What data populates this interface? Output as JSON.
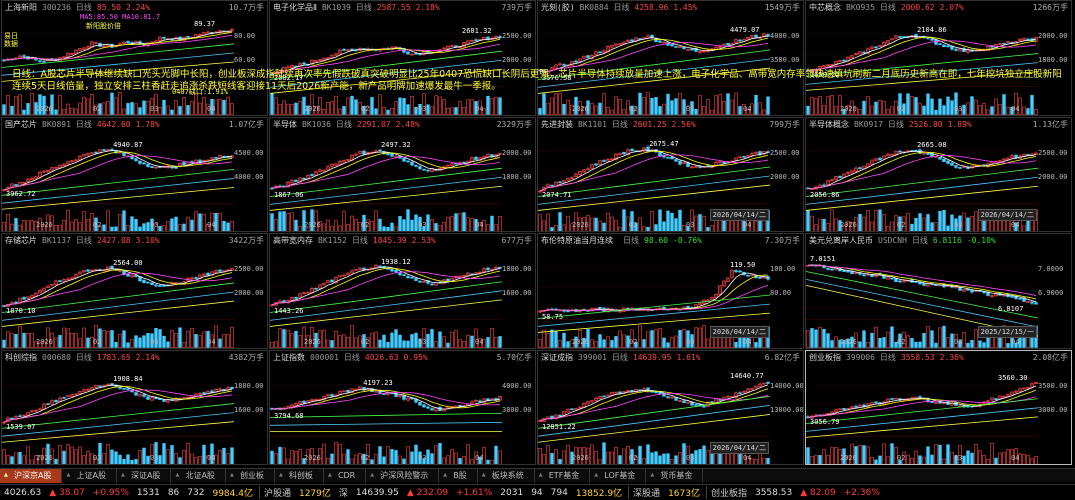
{
  "colors": {
    "up": "#ff4444",
    "down": "#33dd33",
    "ma5": "#ffffff",
    "ma10": "#ffff00",
    "ma20": "#ff44ff",
    "ma60": "#44ff44",
    "ma120": "#44ccff",
    "ma250": "#ffff44",
    "grid": "#3a0000"
  },
  "note": "日线：A股芯片半导体继续缺口光头光脚中长阳，创业板深成指陆续再次率先假跌破真突破明显比25年0407恐慌缺口长阴后更强，芯片半导体持续放量加速上涨，电子化学品、高带宽内存率领快速填坑刷新二月底历史新高在即，七年挖坑独立庄股新阳连续5天日线倍量，独立安排三柱香赶走追涨杀跌短线客迎接11天后2026新产能，新产品明牌加速爆发最牛一季报。",
  "panels": [
    {
      "name": "上海新阳",
      "code": "300236",
      "period": "日线",
      "price": "85.50",
      "change": "2.24%",
      "dir": "up",
      "volume": "10.7万手",
      "yticks": [
        "80.00",
        "60.00"
      ],
      "hi": "89.37",
      "lo": "",
      "date_tag": "",
      "extras": [
        {
          "text": "MA5:85.50 MA10:81.7",
          "cls": "mag"
        },
        {
          "text": "0407缺口:1.91%",
          "cls": "yel"
        },
        {
          "text": "新阳股价倍",
          "cls": "yel"
        },
        {
          "text": "易日",
          "cls": "yel"
        },
        {
          "text": "数据",
          "cls": "yel"
        }
      ],
      "trend": [
        40,
        48,
        38,
        42,
        55,
        68,
        62,
        70,
        66,
        78,
        74,
        82,
        88,
        92
      ]
    },
    {
      "name": "电子化学品Ⅱ",
      "code": "BK1039",
      "period": "日线",
      "price": "2587.55",
      "change": "2.18%",
      "dir": "up",
      "volume": "739万手",
      "yticks": [
        "2500.00",
        "2000.00"
      ],
      "hi": "2601.32",
      "lo": "2082.17",
      "date_tag": "",
      "extras": [],
      "trend": [
        20,
        28,
        35,
        45,
        55,
        60,
        58,
        62,
        50,
        55,
        60,
        68,
        75,
        80
      ]
    },
    {
      "name": "光刻(胶)",
      "code": "BK0884",
      "period": "日线",
      "price": "4258.96",
      "change": "1.45%",
      "dir": "up",
      "volume": "1549万手",
      "yticks": [
        "4000.00",
        "3500.00"
      ],
      "hi": "4479.07",
      "lo": "3576.58",
      "date_tag": "",
      "extras": [],
      "trend": [
        20,
        30,
        38,
        50,
        62,
        72,
        80,
        70,
        60,
        55,
        62,
        70,
        78,
        82
      ]
    },
    {
      "name": "中芯概念",
      "code": "BK0935",
      "period": "日线",
      "price": "2000.62",
      "change": "2.07%",
      "dir": "up",
      "volume": "1266万手",
      "yticks": [
        "2000.00",
        "1800.00"
      ],
      "hi": "2104.86",
      "lo": "1650.22",
      "date_tag": "",
      "extras": [],
      "trend": [
        25,
        30,
        40,
        52,
        65,
        78,
        82,
        72,
        62,
        55,
        60,
        66,
        72,
        76
      ]
    },
    {
      "name": "国产芯片",
      "code": "BK0891",
      "period": "日线",
      "price": "4642.60",
      "change": "1.78%",
      "dir": "up",
      "volume": "1.07亿手",
      "yticks": [
        "4500.00",
        "4000.00"
      ],
      "hi": "4940.87",
      "lo": "3962.72",
      "date_tag": "",
      "extras": [],
      "trend": [
        22,
        32,
        45,
        58,
        70,
        82,
        85,
        75,
        62,
        55,
        60,
        66,
        72,
        78
      ]
    },
    {
      "name": "半导体",
      "code": "BK1036",
      "period": "日线",
      "price": "2291.07",
      "change": "2.48%",
      "dir": "up",
      "volume": "2329万手",
      "yticks": [
        "2000.00",
        "1800.00"
      ],
      "hi": "2497.32",
      "lo": "1867.06",
      "date_tag": "",
      "extras": [],
      "trend": [
        20,
        30,
        42,
        55,
        68,
        80,
        84,
        74,
        60,
        52,
        58,
        66,
        74,
        80
      ]
    },
    {
      "name": "先进封装",
      "code": "BK1101",
      "period": "日线",
      "price": "2601.25",
      "change": "2.56%",
      "dir": "up",
      "volume": "799万手",
      "yticks": [
        "2500.00",
        "2000.00"
      ],
      "hi": "2675.47",
      "lo": "2074.71",
      "date_tag": "2026/04/14/二",
      "extras": [],
      "trend": [
        20,
        30,
        45,
        60,
        72,
        84,
        86,
        76,
        64,
        56,
        62,
        70,
        78,
        82
      ]
    },
    {
      "name": "半导体概念",
      "code": "BK0917",
      "period": "日线",
      "price": "2526.80",
      "change": "1.89%",
      "dir": "up",
      "volume": "1.13亿手",
      "yticks": [
        "2500.00",
        "2000.00"
      ],
      "hi": "2665.08",
      "lo": "2056.86",
      "date_tag": "2026/04/14/二",
      "extras": [],
      "trend": [
        20,
        30,
        44,
        58,
        70,
        82,
        85,
        76,
        62,
        55,
        60,
        68,
        76,
        80
      ]
    },
    {
      "name": "存储芯片",
      "code": "BK1137",
      "period": "日线",
      "price": "2427.08",
      "change": "3.10%",
      "dir": "up",
      "volume": "3422万手",
      "yticks": [
        "2500.00",
        "2000.00"
      ],
      "hi": "2564.00",
      "lo": "1870.10",
      "date_tag": "",
      "extras": [],
      "trend": [
        20,
        30,
        42,
        58,
        70,
        80,
        82,
        72,
        60,
        52,
        58,
        66,
        74,
        82
      ]
    },
    {
      "name": "高带宽内存",
      "code": "BK1152",
      "period": "日线",
      "price": "1845.39",
      "change": "2.53%",
      "dir": "up",
      "volume": "677万手",
      "yticks": [
        "1800.00",
        "1600.00"
      ],
      "hi": "1938.12",
      "lo": "1443.26",
      "date_tag": "",
      "extras": [],
      "trend": [
        20,
        30,
        42,
        56,
        68,
        80,
        84,
        74,
        62,
        56,
        62,
        70,
        78,
        84
      ]
    },
    {
      "name": "布伦特原油当月连续",
      "code": "",
      "period": "日线",
      "price": "98.60",
      "change": "-0.76%",
      "dir": "dn",
      "volume": "7.30万手",
      "yticks": [
        "100.00",
        "80.00"
      ],
      "hi": "119.50",
      "lo": "58.75",
      "date_tag": "2026/04/14/二",
      "extras": [],
      "trend": [
        10,
        12,
        11,
        13,
        12,
        14,
        13,
        15,
        14,
        20,
        40,
        78,
        70,
        62
      ]
    },
    {
      "name": "美元兑离岸人民币",
      "code": "USDCNH",
      "period": "日线",
      "price": "6.8116",
      "change": "-0.10%",
      "dir": "dn",
      "volume": "",
      "yticks": [
        "7.0000",
        "6.9000"
      ],
      "hi": "7.0151",
      "lo": "6.8107",
      "date_tag": "2025/12/15/一",
      "extras": [],
      "trend": [
        88,
        82,
        78,
        72,
        68,
        62,
        58,
        54,
        50,
        46,
        40,
        36,
        30,
        24
      ]
    },
    {
      "name": "科创综指",
      "code": "000680",
      "period": "日线",
      "price": "1783.65",
      "change": "2.14%",
      "dir": "up",
      "volume": "4382万手",
      "yticks": [
        "1800.00",
        "1600.00"
      ],
      "hi": "1908.84",
      "lo": "1539.07",
      "date_tag": "",
      "extras": [],
      "trend": [
        22,
        32,
        44,
        56,
        68,
        78,
        82,
        72,
        62,
        55,
        60,
        66,
        72,
        76
      ]
    },
    {
      "name": "上证指数",
      "code": "000001",
      "period": "日线",
      "price": "4026.63",
      "change": "0.95%",
      "dir": "up",
      "volume": "5.70亿手",
      "yticks": [
        "4000.00",
        "3800.00"
      ],
      "hi": "4197.23",
      "lo": "3794.68",
      "date_tag": "",
      "extras": [],
      "trend": [
        40,
        48,
        56,
        62,
        70,
        76,
        72,
        66,
        56,
        40,
        44,
        50,
        56,
        60
      ]
    },
    {
      "name": "深证成指",
      "code": "399001",
      "period": "日线",
      "price": "14639.95",
      "change": "1.61%",
      "dir": "up",
      "volume": "6.82亿手",
      "yticks": [
        "14000.00",
        "13000.00"
      ],
      "hi": "14640.77",
      "lo": "12851.22",
      "date_tag": "2026/04/14/二",
      "extras": [],
      "trend": [
        22,
        32,
        44,
        56,
        66,
        72,
        74,
        66,
        56,
        46,
        56,
        66,
        76,
        88
      ]
    },
    {
      "name": "创业板指",
      "code": "399006",
      "period": "日线",
      "price": "3558.53",
      "change": "2.36%",
      "dir": "up",
      "volume": "2.08亿手",
      "yticks": [
        "3500.00",
        "3000.00"
      ],
      "hi": "3560.30",
      "lo": "3056.79",
      "date_tag": "",
      "extras": [],
      "trend": [
        30,
        36,
        42,
        48,
        52,
        58,
        60,
        56,
        50,
        46,
        54,
        62,
        72,
        84
      ]
    }
  ],
  "xticks": [
    "2026",
    "02",
    "03",
    "04"
  ],
  "tabs": [
    "沪深京A股",
    "上证A股",
    "深证A股",
    "北证A股",
    "创业板",
    "科创板",
    "CDR",
    "沪深风险警示",
    "B股",
    "板块系统",
    "ETF基金",
    "LOF基金",
    "货币基金"
  ],
  "status": [
    {
      "t": "4026.63",
      "c": "w"
    },
    {
      "t": "▲ 38.07",
      "c": "r"
    },
    {
      "t": "+0.95%",
      "c": "r"
    },
    {
      "t": "1531",
      "c": "w"
    },
    {
      "t": "86",
      "c": "w"
    },
    {
      "t": "732",
      "c": "w"
    },
    {
      "t": "9984.4亿",
      "c": "y"
    },
    {
      "t": "沪股通",
      "c": "lbl sep"
    },
    {
      "t": "1279亿",
      "c": "y"
    },
    {
      "t": "深",
      "c": "lbl"
    },
    {
      "t": "14639.95",
      "c": "w"
    },
    {
      "t": "▲ 232.09",
      "c": "r"
    },
    {
      "t": "+1.61%",
      "c": "r"
    },
    {
      "t": "2031",
      "c": "w"
    },
    {
      "t": "94",
      "c": "w"
    },
    {
      "t": "794",
      "c": "w"
    },
    {
      "t": "13852.9亿",
      "c": "y"
    },
    {
      "t": "深股通",
      "c": "lbl sep"
    },
    {
      "t": "1673亿",
      "c": "y"
    },
    {
      "t": "创业板指",
      "c": "lbl sep"
    },
    {
      "t": "3558.53",
      "c": "w"
    },
    {
      "t": "▲ 82.09",
      "c": "r"
    },
    {
      "t": "+2.36%",
      "c": "r"
    }
  ]
}
